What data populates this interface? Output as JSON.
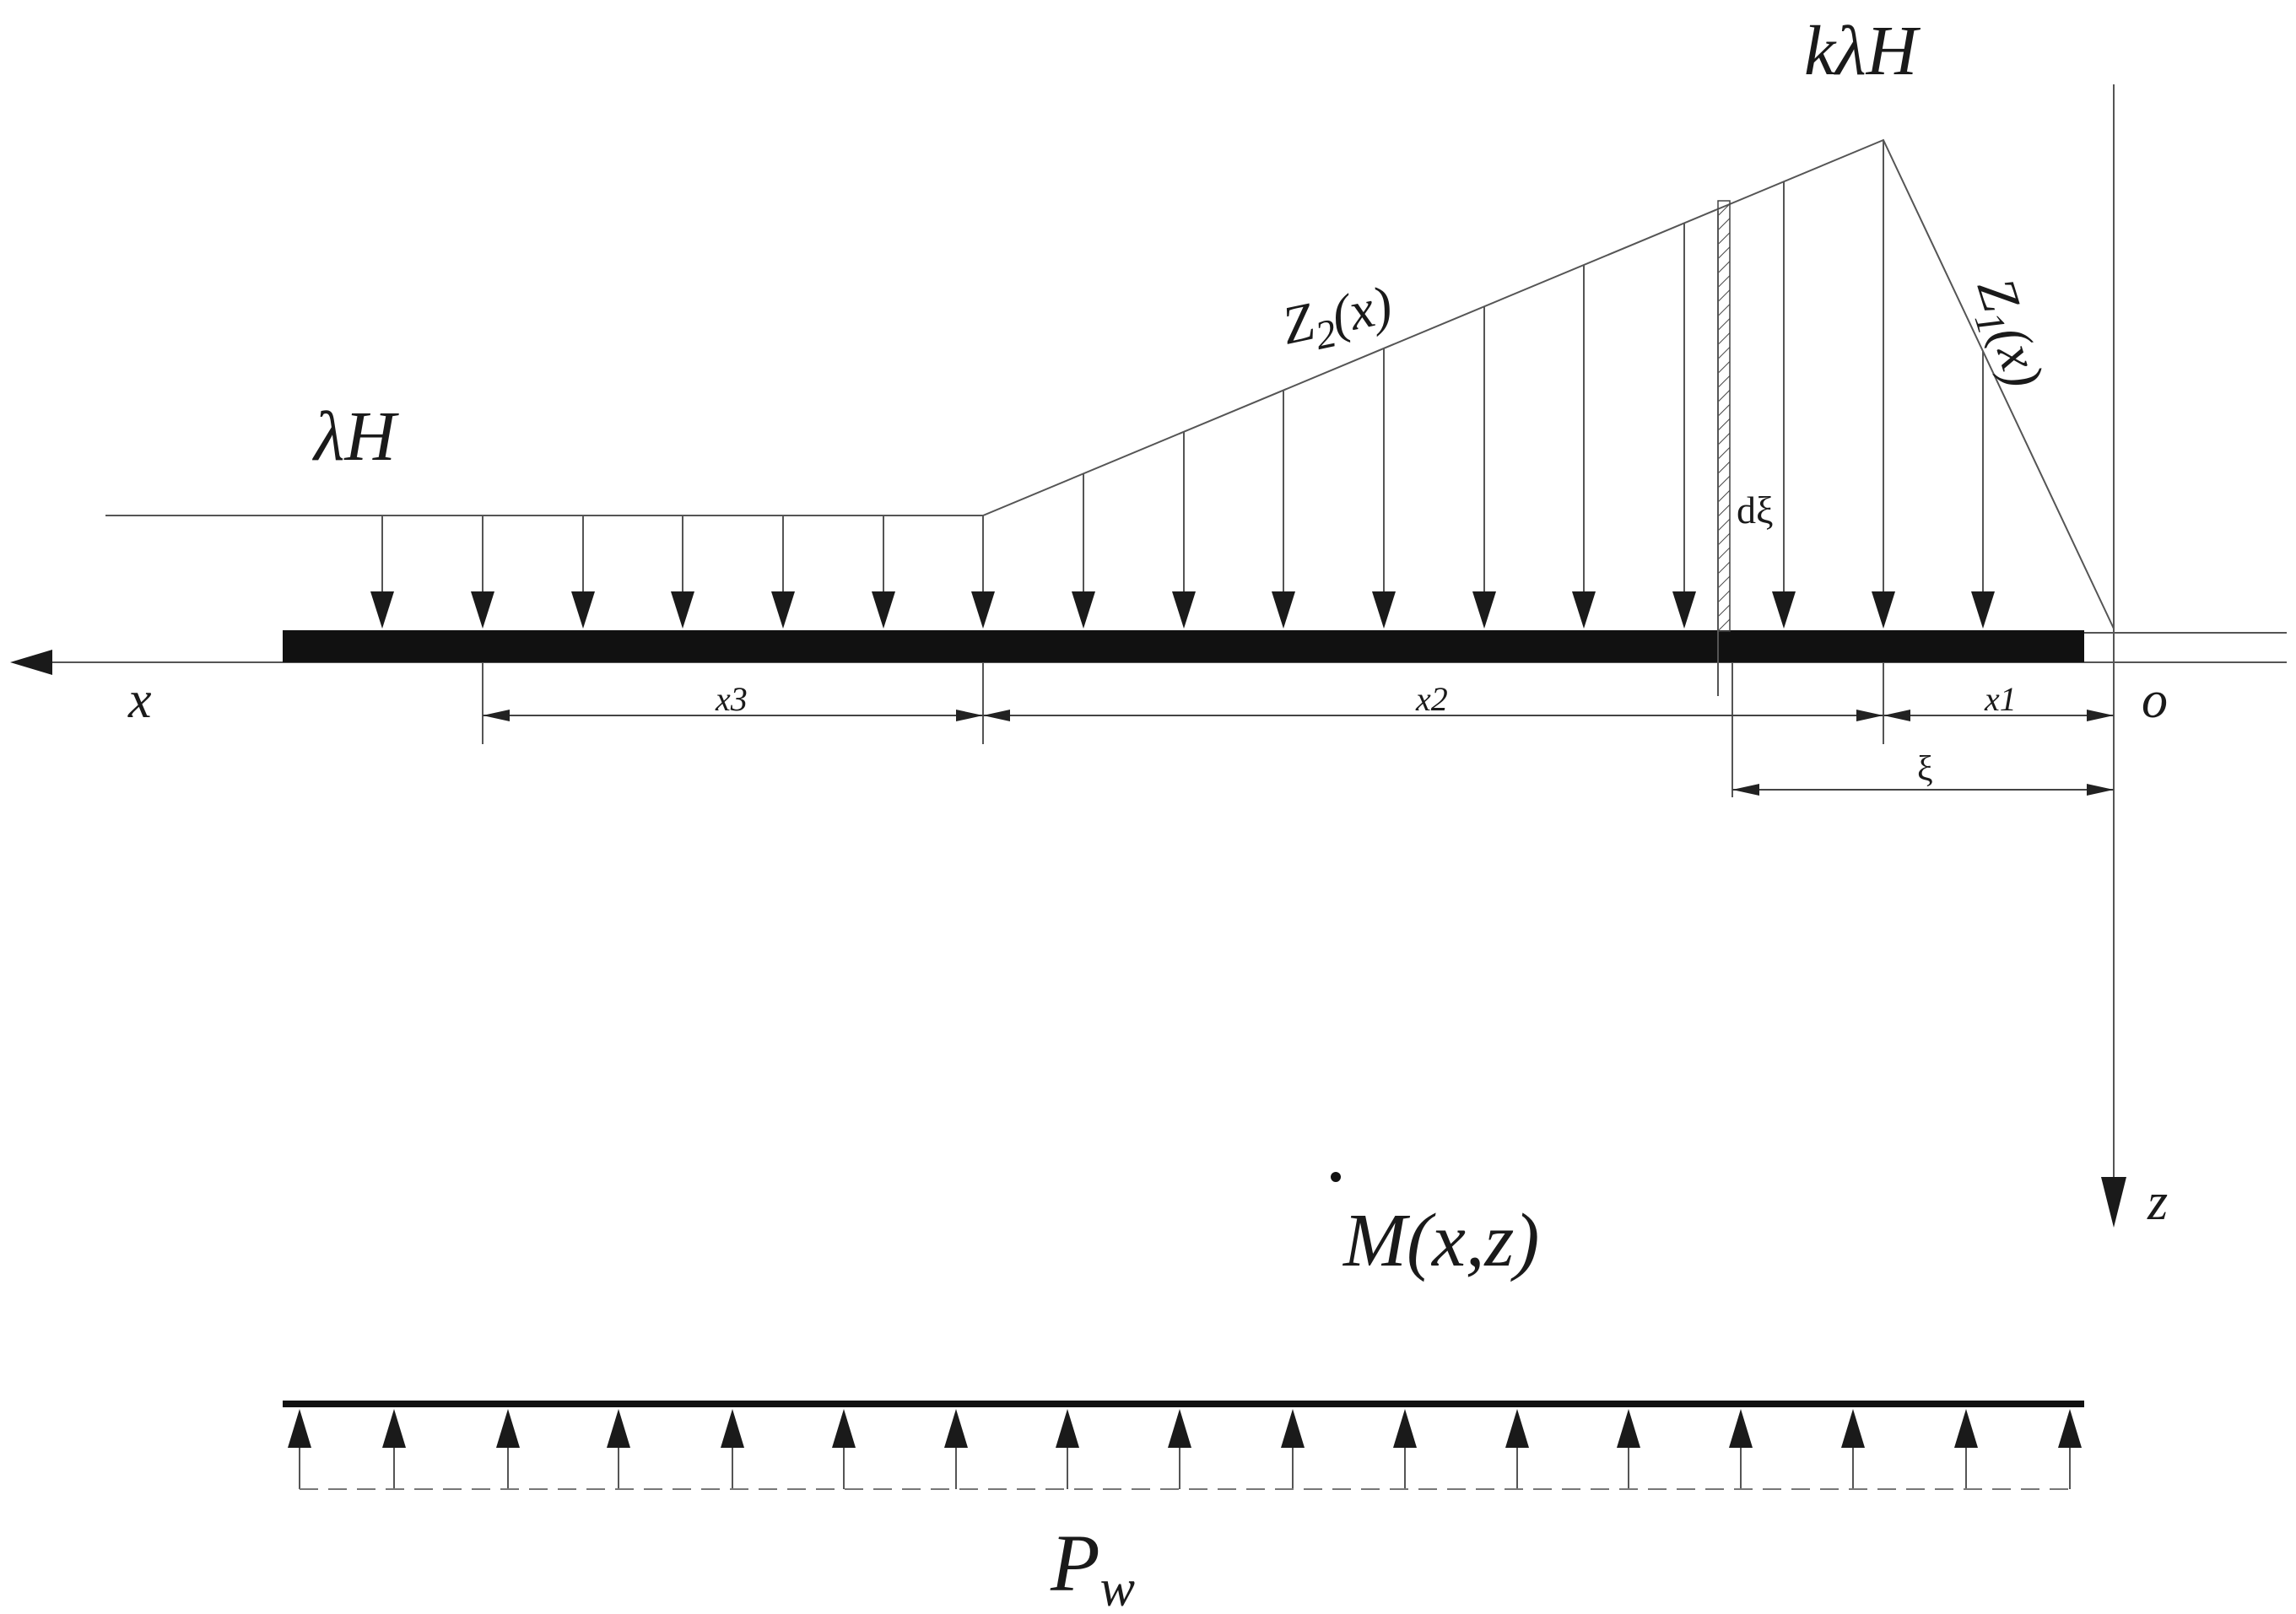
{
  "labels": {
    "lambda_h": "λH",
    "k_lambda_h": "kλH",
    "z2_main": "Z",
    "z2_sub": "2",
    "z2_arg": "(x)",
    "z1_main": "Z",
    "z1_sub": "1",
    "z1_arg": "(x)",
    "d_xi": "dξ",
    "x_axis": "x",
    "z_axis": "z",
    "origin": "o",
    "x1": "x1",
    "x2": "x2",
    "x3": "x3",
    "xi": "ξ",
    "point_m": "M(x,z)",
    "pw_main": "P",
    "pw_sub": "w"
  },
  "colors": {
    "ink": "#1a1a1a",
    "thin_line": "#555555",
    "background": "#ffffff"
  }
}
